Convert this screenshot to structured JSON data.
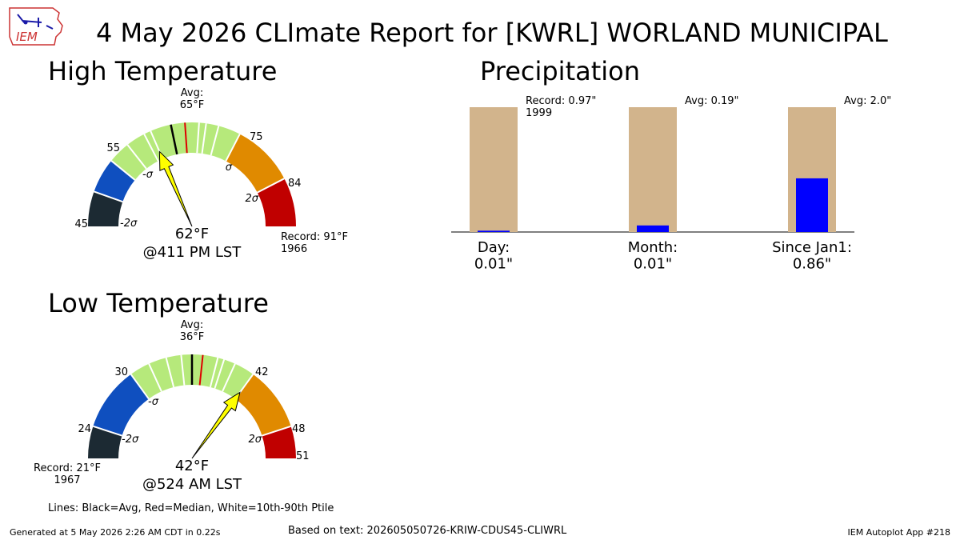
{
  "title": "4 May 2026 CLImate Report for [KWRL] WORLAND MUNICIPAL",
  "logo_text": "IEM",
  "legend_note": "Lines: Black=Avg, Red=Median, White=10th-90th Ptile",
  "footer": {
    "left": "Generated at 5 May 2026 2:26 AM CDT in 0.22s",
    "center": "Based on text: 202605050726-KRIW-CDUS45-CLIWRL",
    "right": "IEM Autoplot App #218"
  },
  "colors": {
    "band_low_extreme": "#1c2a33",
    "band_below_2sigma": "#0f4fbf",
    "band_normal": "#b6e97b",
    "band_above_sigma": "#e08a00",
    "band_high_extreme": "#c00000",
    "precip_avg_bar": "#d2b48c",
    "precip_obs_bar": "#0000ff",
    "needle": "#ffff00"
  },
  "chart_data": [
    {
      "type": "gauge",
      "title": "High Temperature",
      "range": [
        45,
        91
      ],
      "avg": 65,
      "median": 67,
      "p10": 62,
      "p90": 70,
      "sigma_marks": {
        "minus2": 50,
        "minus1": 55,
        "plus1": 75,
        "plus2": 84
      },
      "observed": 62,
      "avg_label": "Avg:\n65°F",
      "value_label": "62°F",
      "time_label": "@411 PM LST",
      "record_label": "Record: 91°F\n1966",
      "tick_labels": [
        "45",
        "55",
        "75",
        "84"
      ],
      "sigma_labels": [
        "-2σ",
        "-σ",
        "σ",
        "2σ"
      ]
    },
    {
      "type": "gauge",
      "title": "Low Temperature",
      "range": [
        21,
        51
      ],
      "avg": 36,
      "median": 37,
      "p10": 35,
      "p90": 39,
      "sigma_marks": {
        "minus2": 24,
        "minus1": 30,
        "plus1": 42,
        "plus2": 48
      },
      "observed": 42,
      "avg_label": "Avg:\n36°F",
      "value_label": "42°F",
      "time_label": "@524 AM LST",
      "record_label": "Record: 21°F\n1967",
      "tick_labels": [
        "24",
        "30",
        "42",
        "48",
        "51"
      ],
      "sigma_labels": [
        "-2σ",
        "-σ",
        "σ",
        "2σ"
      ]
    },
    {
      "type": "bar",
      "title": "Precipitation",
      "categories": [
        "Day:\n0.01\"",
        "Month:\n0.01\"",
        "Since Jan1:\n0.86\""
      ],
      "observed": [
        0.01,
        0.01,
        0.86
      ],
      "reference": [
        0.97,
        0.19,
        2.0
      ],
      "reference_labels": [
        "Record: 0.97\"\n1999",
        "Avg: 0.19\"",
        "Avg: 2.0\""
      ]
    }
  ]
}
